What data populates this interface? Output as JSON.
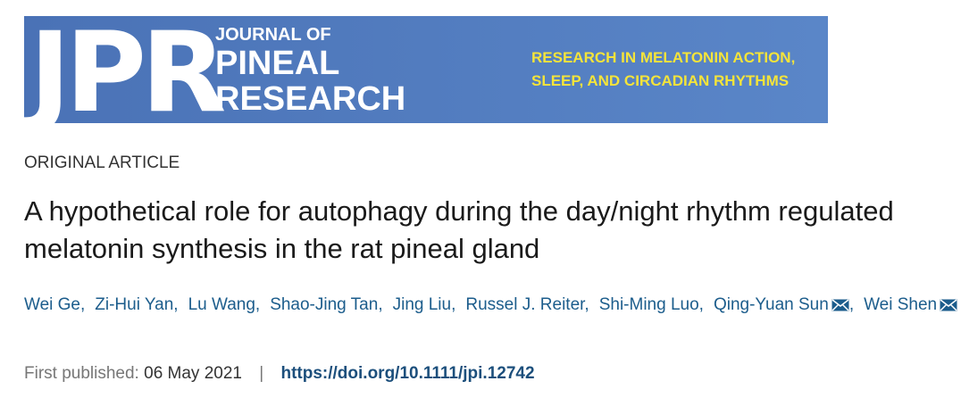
{
  "banner": {
    "logo": "JPR",
    "journal_lines": [
      "JOURNAL OF",
      "PINEAL",
      "RESEARCH"
    ],
    "tagline_lines": [
      "RESEARCH IN MELATONIN ACTION,",
      "SLEEP, AND CIRCADIAN RHYTHMS"
    ]
  },
  "article_type": "ORIGINAL ARTICLE",
  "title": "A hypothetical role for autophagy during the day/night rhythm regulated melatonin synthesis in the rat pineal gland",
  "authors": [
    {
      "name": "Wei Ge,",
      "corresponding": false
    },
    {
      "name": "Zi-Hui Yan,",
      "corresponding": false
    },
    {
      "name": "Lu Wang,",
      "corresponding": false
    },
    {
      "name": "Shao-Jing Tan,",
      "corresponding": false
    },
    {
      "name": "Jing Liu,",
      "corresponding": false
    },
    {
      "name": "Russel J. Reiter,",
      "corresponding": false
    },
    {
      "name": "Shi-Ming Luo,",
      "corresponding": false
    },
    {
      "name": "Qing-Yuan Sun",
      "corresponding": true,
      "after": ","
    },
    {
      "name": "Wei Shen",
      "corresponding": true
    }
  ],
  "published": {
    "label": "First published:",
    "date": "06 May 2021",
    "separator": "|",
    "doi": "https://doi.org/10.1111/jpi.12742"
  }
}
